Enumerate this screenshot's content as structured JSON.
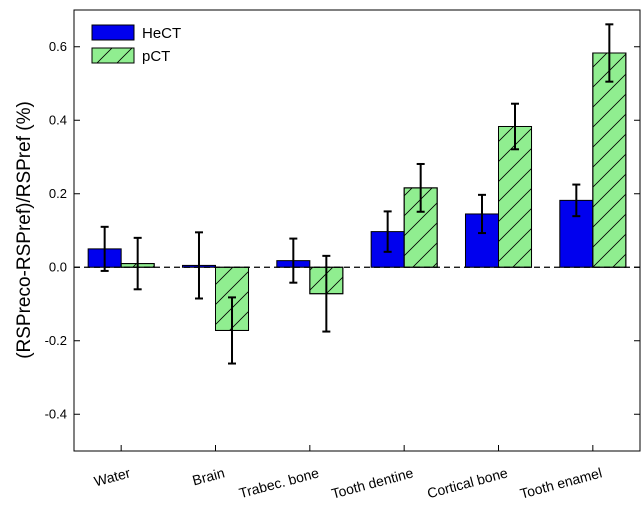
{
  "chart_data": {
    "type": "bar",
    "title": "",
    "xlabel": "",
    "ylabel": "(RSPreco-RSPref)/RSPref (%)",
    "ylim": [
      -0.5,
      0.7
    ],
    "yticks": [
      -0.4,
      -0.2,
      0.0,
      0.2,
      0.4,
      0.6
    ],
    "ytick_labels": [
      "-0.4",
      "-0.2",
      "0.0",
      "0.2",
      "0.4",
      "0.6"
    ],
    "categories": [
      "Water",
      "Brain",
      "Trabec. bone",
      "Tooth dentine",
      "Cortical bone",
      "Tooth enamel"
    ],
    "series": [
      {
        "name": "HeCT",
        "color": "#0000ee",
        "hatch": false,
        "values": [
          0.05,
          0.005,
          0.018,
          0.097,
          0.145,
          0.182
        ],
        "errors": [
          0.06,
          0.09,
          0.06,
          0.055,
          0.052,
          0.043
        ]
      },
      {
        "name": "pCT",
        "color": "#90ee90",
        "hatch": true,
        "values": [
          0.01,
          -0.172,
          -0.072,
          0.216,
          0.383,
          0.583
        ],
        "errors": [
          0.07,
          0.09,
          0.103,
          0.065,
          0.062,
          0.078
        ]
      }
    ],
    "zero_line": "dashed",
    "legend": "top-left",
    "grid": false
  }
}
